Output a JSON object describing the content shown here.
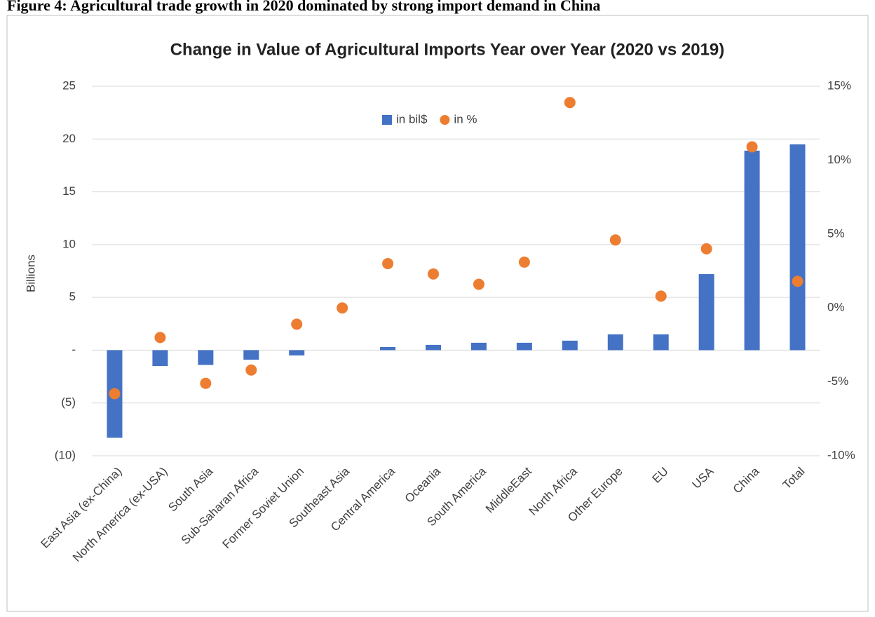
{
  "figure_caption": "Figure 4: Agricultural trade growth in 2020 dominated by strong import demand in China",
  "chart_data": {
    "type": "bar",
    "title": "Change in Value of Agricultural Imports Year over Year (2020 vs 2019)",
    "y_label": "Billions",
    "categories": [
      "East Asia (ex-China)",
      "North America (ex-USA)",
      "South Asia",
      "Sub-Saharan Africa",
      "Former Soviet Union",
      "Southeast Asia",
      "Central America",
      "Oceania",
      "South America",
      "MiddleEast",
      "North Africa",
      "Other Europe",
      "EU",
      "USA",
      "China",
      "Total"
    ],
    "series": [
      {
        "name": "in bil$",
        "type": "bar",
        "color": "#4472c4",
        "values": [
          -8.3,
          -1.5,
          -1.4,
          -0.9,
          -0.5,
          0,
          0.3,
          0.5,
          0.7,
          0.7,
          0.9,
          1.5,
          1.5,
          7.2,
          18.9,
          19.5
        ]
      },
      {
        "name": "in %",
        "type": "scatter",
        "axis": "y2",
        "color": "#ed7d31",
        "values": [
          -5.8,
          -2.0,
          -5.1,
          -4.2,
          -1.1,
          0.0,
          3.0,
          2.3,
          1.6,
          3.1,
          13.9,
          4.6,
          0.8,
          4.0,
          10.9,
          1.8
        ]
      }
    ],
    "ylim": [
      -10,
      25
    ],
    "yticks": [
      {
        "value": -10,
        "label": "(10)"
      },
      {
        "value": -5,
        "label": "(5)"
      },
      {
        "value": 0,
        "label": "-"
      },
      5,
      10,
      15,
      20,
      25
    ],
    "y2lim": [
      -10,
      15
    ],
    "y2ticks": [
      {
        "value": -10,
        "label": "-10%"
      },
      {
        "value": -5,
        "label": "-5%"
      },
      {
        "value": 0,
        "label": "0%"
      },
      {
        "value": 5,
        "label": "5%"
      },
      {
        "value": 10,
        "label": "10%"
      },
      {
        "value": 15,
        "label": "15%"
      }
    ],
    "grid": true,
    "legend": "top"
  }
}
